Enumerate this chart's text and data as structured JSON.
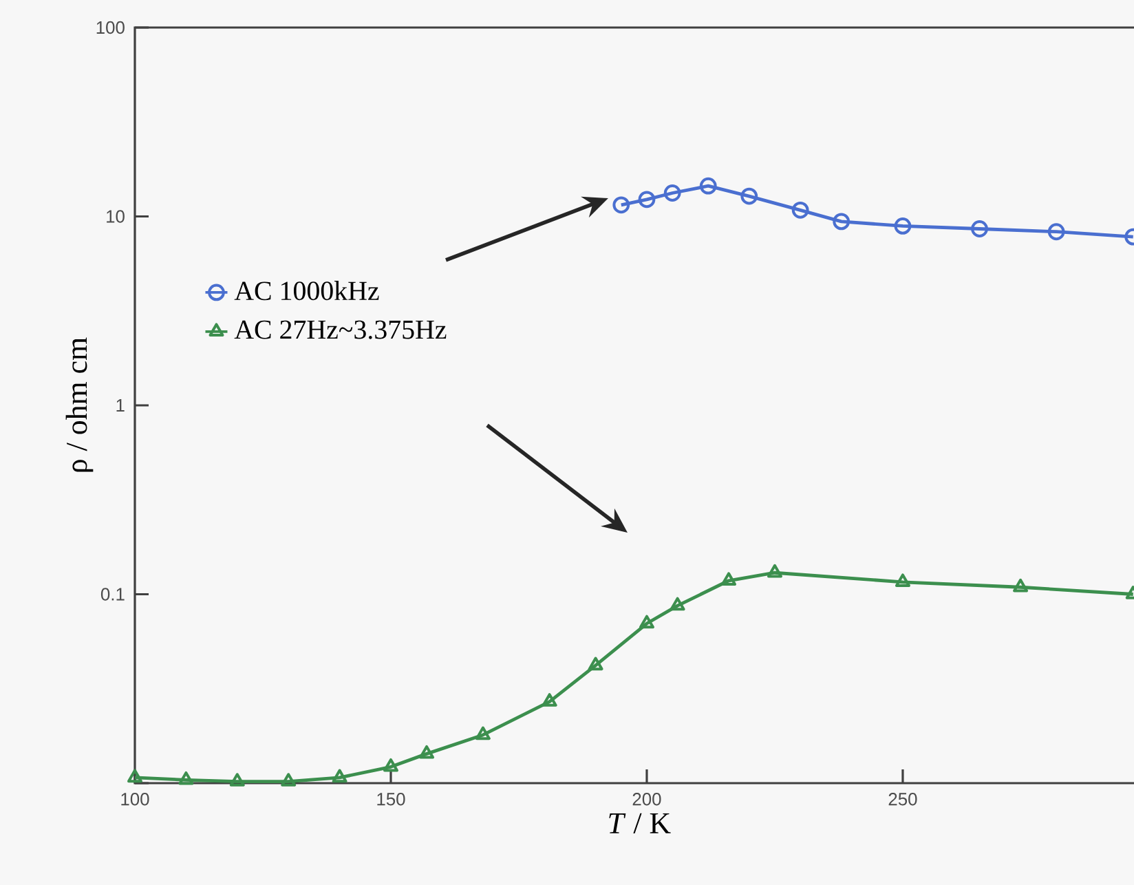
{
  "chart_data": {
    "type": "line",
    "xlabel": "*T* / K",
    "ylabel": "ρ / ohm cm",
    "xlim": [
      100,
      297
    ],
    "xticks": [
      100,
      150,
      200,
      250
    ],
    "ylim": [
      0.01,
      100
    ],
    "yticks": [
      {
        "value": 0.01,
        "label": null
      },
      0.1,
      1,
      10,
      100
    ],
    "log": "y",
    "legend": "left",
    "grid": false,
    "series": [
      {
        "name": "AC 1000kHz",
        "color": "#4a6fd0",
        "marker": "circle",
        "x": [
          195,
          200,
          205,
          212,
          220,
          230,
          238,
          250,
          265,
          280,
          295
        ],
        "values": [
          11.5,
          12.3,
          13.3,
          14.5,
          12.8,
          10.8,
          9.4,
          8.9,
          8.6,
          8.3,
          7.8
        ]
      },
      {
        "name": "AC 27Hz~3.375Hz",
        "color": "#3c8f4e",
        "marker": "triangle",
        "x": [
          100,
          110,
          120,
          130,
          140,
          150,
          157,
          168,
          181,
          190,
          200,
          206,
          216,
          225,
          250,
          273,
          295
        ],
        "values": [
          0.0107,
          0.0104,
          0.0102,
          0.0102,
          0.0107,
          0.0122,
          0.0143,
          0.018,
          0.027,
          0.042,
          0.07,
          0.087,
          0.118,
          0.13,
          0.116,
          0.109,
          0.1
        ]
      }
    ]
  }
}
